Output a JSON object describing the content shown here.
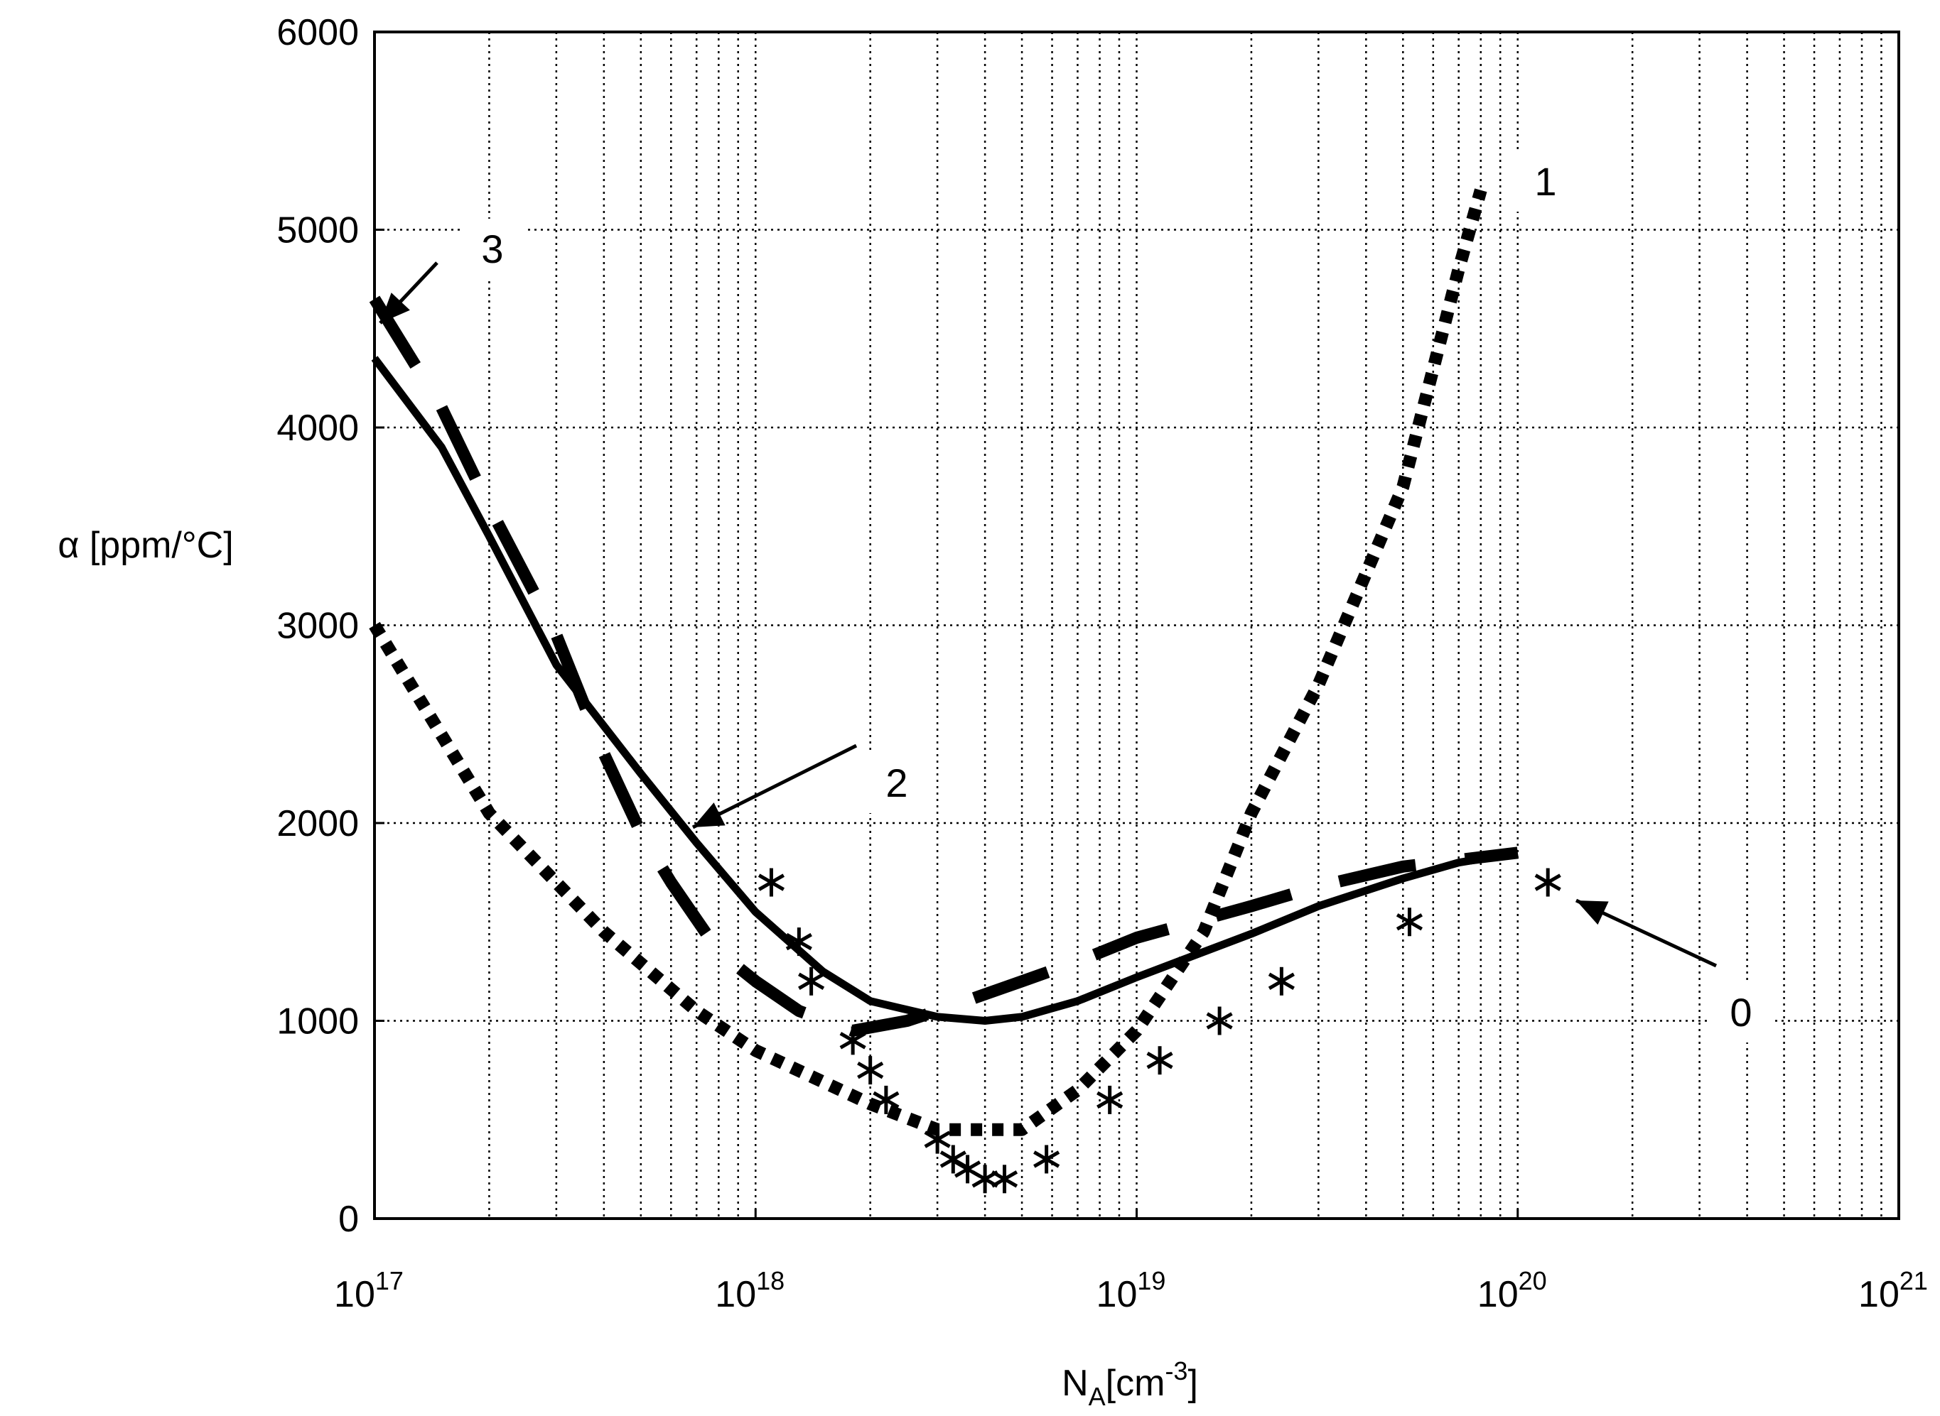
{
  "chart_data": {
    "type": "line",
    "xlabel": {
      "base": "N",
      "sub": "A",
      "unit": "[cm",
      "sup": "-3",
      "close": "]"
    },
    "ylabel": "α [ppm/°C]",
    "xscale": "log",
    "xlim": [
      1e+17,
      1e+21
    ],
    "ylim": [
      0,
      6000
    ],
    "grid": true,
    "y_ticks": [
      "0",
      "1000",
      "2000",
      "3000",
      "4000",
      "5000",
      "6000"
    ],
    "y_tick_values": [
      0,
      1000,
      2000,
      3000,
      4000,
      5000,
      6000
    ],
    "x_ticks": [
      {
        "base": "10",
        "exp": "17",
        "value": 1e+17
      },
      {
        "base": "10",
        "exp": "18",
        "value": 1e+18
      },
      {
        "base": "10",
        "exp": "19",
        "value": 1e+19
      },
      {
        "base": "10",
        "exp": "20",
        "value": 1e+20
      },
      {
        "base": "10",
        "exp": "21",
        "value": 1e+21
      }
    ],
    "series": [
      {
        "name": "0",
        "style": "asterisk-markers",
        "points": [
          [
            1.1e+18,
            1700
          ],
          [
            1.3e+18,
            1400
          ],
          [
            1.4e+18,
            1200
          ],
          [
            1.8e+18,
            900
          ],
          [
            2e+18,
            750
          ],
          [
            2.2e+18,
            600
          ],
          [
            3e+18,
            400
          ],
          [
            3.3e+18,
            300
          ],
          [
            3.6e+18,
            250
          ],
          [
            4e+18,
            200
          ],
          [
            4.5e+18,
            200
          ],
          [
            5.8e+18,
            300
          ],
          [
            8.5e+18,
            600
          ],
          [
            1.15e+19,
            800
          ],
          [
            1.65e+19,
            1000
          ],
          [
            2.4e+19,
            1200
          ],
          [
            5.2e+19,
            1500
          ],
          [
            1.2e+20,
            1700
          ]
        ]
      },
      {
        "name": "1",
        "style": "dotted",
        "points": [
          [
            1e+17,
            3000
          ],
          [
            2e+17,
            2050
          ],
          [
            4e+17,
            1450
          ],
          [
            7e+17,
            1050
          ],
          [
            1e+18,
            850
          ],
          [
            2e+18,
            580
          ],
          [
            3e+18,
            450
          ],
          [
            5e+18,
            450
          ],
          [
            7e+18,
            650
          ],
          [
            1e+19,
            950
          ],
          [
            1.5e+19,
            1450
          ],
          [
            2e+19,
            2050
          ],
          [
            3e+19,
            2700
          ],
          [
            5e+19,
            3700
          ],
          [
            7e+19,
            4800
          ],
          [
            8e+19,
            5200
          ]
        ]
      },
      {
        "name": "2",
        "style": "solid",
        "points": [
          [
            1e+17,
            4350
          ],
          [
            1.5e+17,
            3900
          ],
          [
            2e+17,
            3450
          ],
          [
            3e+17,
            2800
          ],
          [
            5e+17,
            2250
          ],
          [
            7e+17,
            1900
          ],
          [
            1e+18,
            1550
          ],
          [
            1.5e+18,
            1250
          ],
          [
            2e+18,
            1100
          ],
          [
            3e+18,
            1020
          ],
          [
            4e+18,
            1000
          ],
          [
            5e+18,
            1020
          ],
          [
            7e+18,
            1100
          ],
          [
            1e+19,
            1220
          ],
          [
            2e+19,
            1440
          ],
          [
            3e+19,
            1580
          ],
          [
            5e+19,
            1720
          ],
          [
            7e+19,
            1800
          ],
          [
            1e+20,
            1850
          ]
        ]
      },
      {
        "name": "3",
        "style": "dashed",
        "points": [
          [
            1e+17,
            4650
          ],
          [
            1.5e+17,
            4100
          ],
          [
            2e+17,
            3600
          ],
          [
            3e+17,
            2950
          ],
          [
            4e+17,
            2350
          ],
          [
            5e+17,
            1950
          ],
          [
            6e+17,
            1700
          ],
          [
            8e+17,
            1350
          ],
          [
            1e+18,
            1200
          ],
          [
            1.3e+18,
            1050
          ],
          [
            1.8e+18,
            950
          ],
          [
            2.5e+18,
            1000
          ],
          [
            3e+18,
            1050
          ],
          [
            5e+18,
            1200
          ],
          [
            7e+18,
            1300
          ],
          [
            1e+19,
            1420
          ],
          [
            2e+19,
            1580
          ],
          [
            3e+19,
            1680
          ],
          [
            5e+19,
            1780
          ],
          [
            1e+20,
            1850
          ]
        ]
      }
    ],
    "annotations": [
      {
        "text": "0",
        "points_to_series": "0"
      },
      {
        "text": "1",
        "points_to_series": "1"
      },
      {
        "text": "2",
        "points_to_series": "2"
      },
      {
        "text": "3",
        "points_to_series": "3"
      }
    ]
  }
}
